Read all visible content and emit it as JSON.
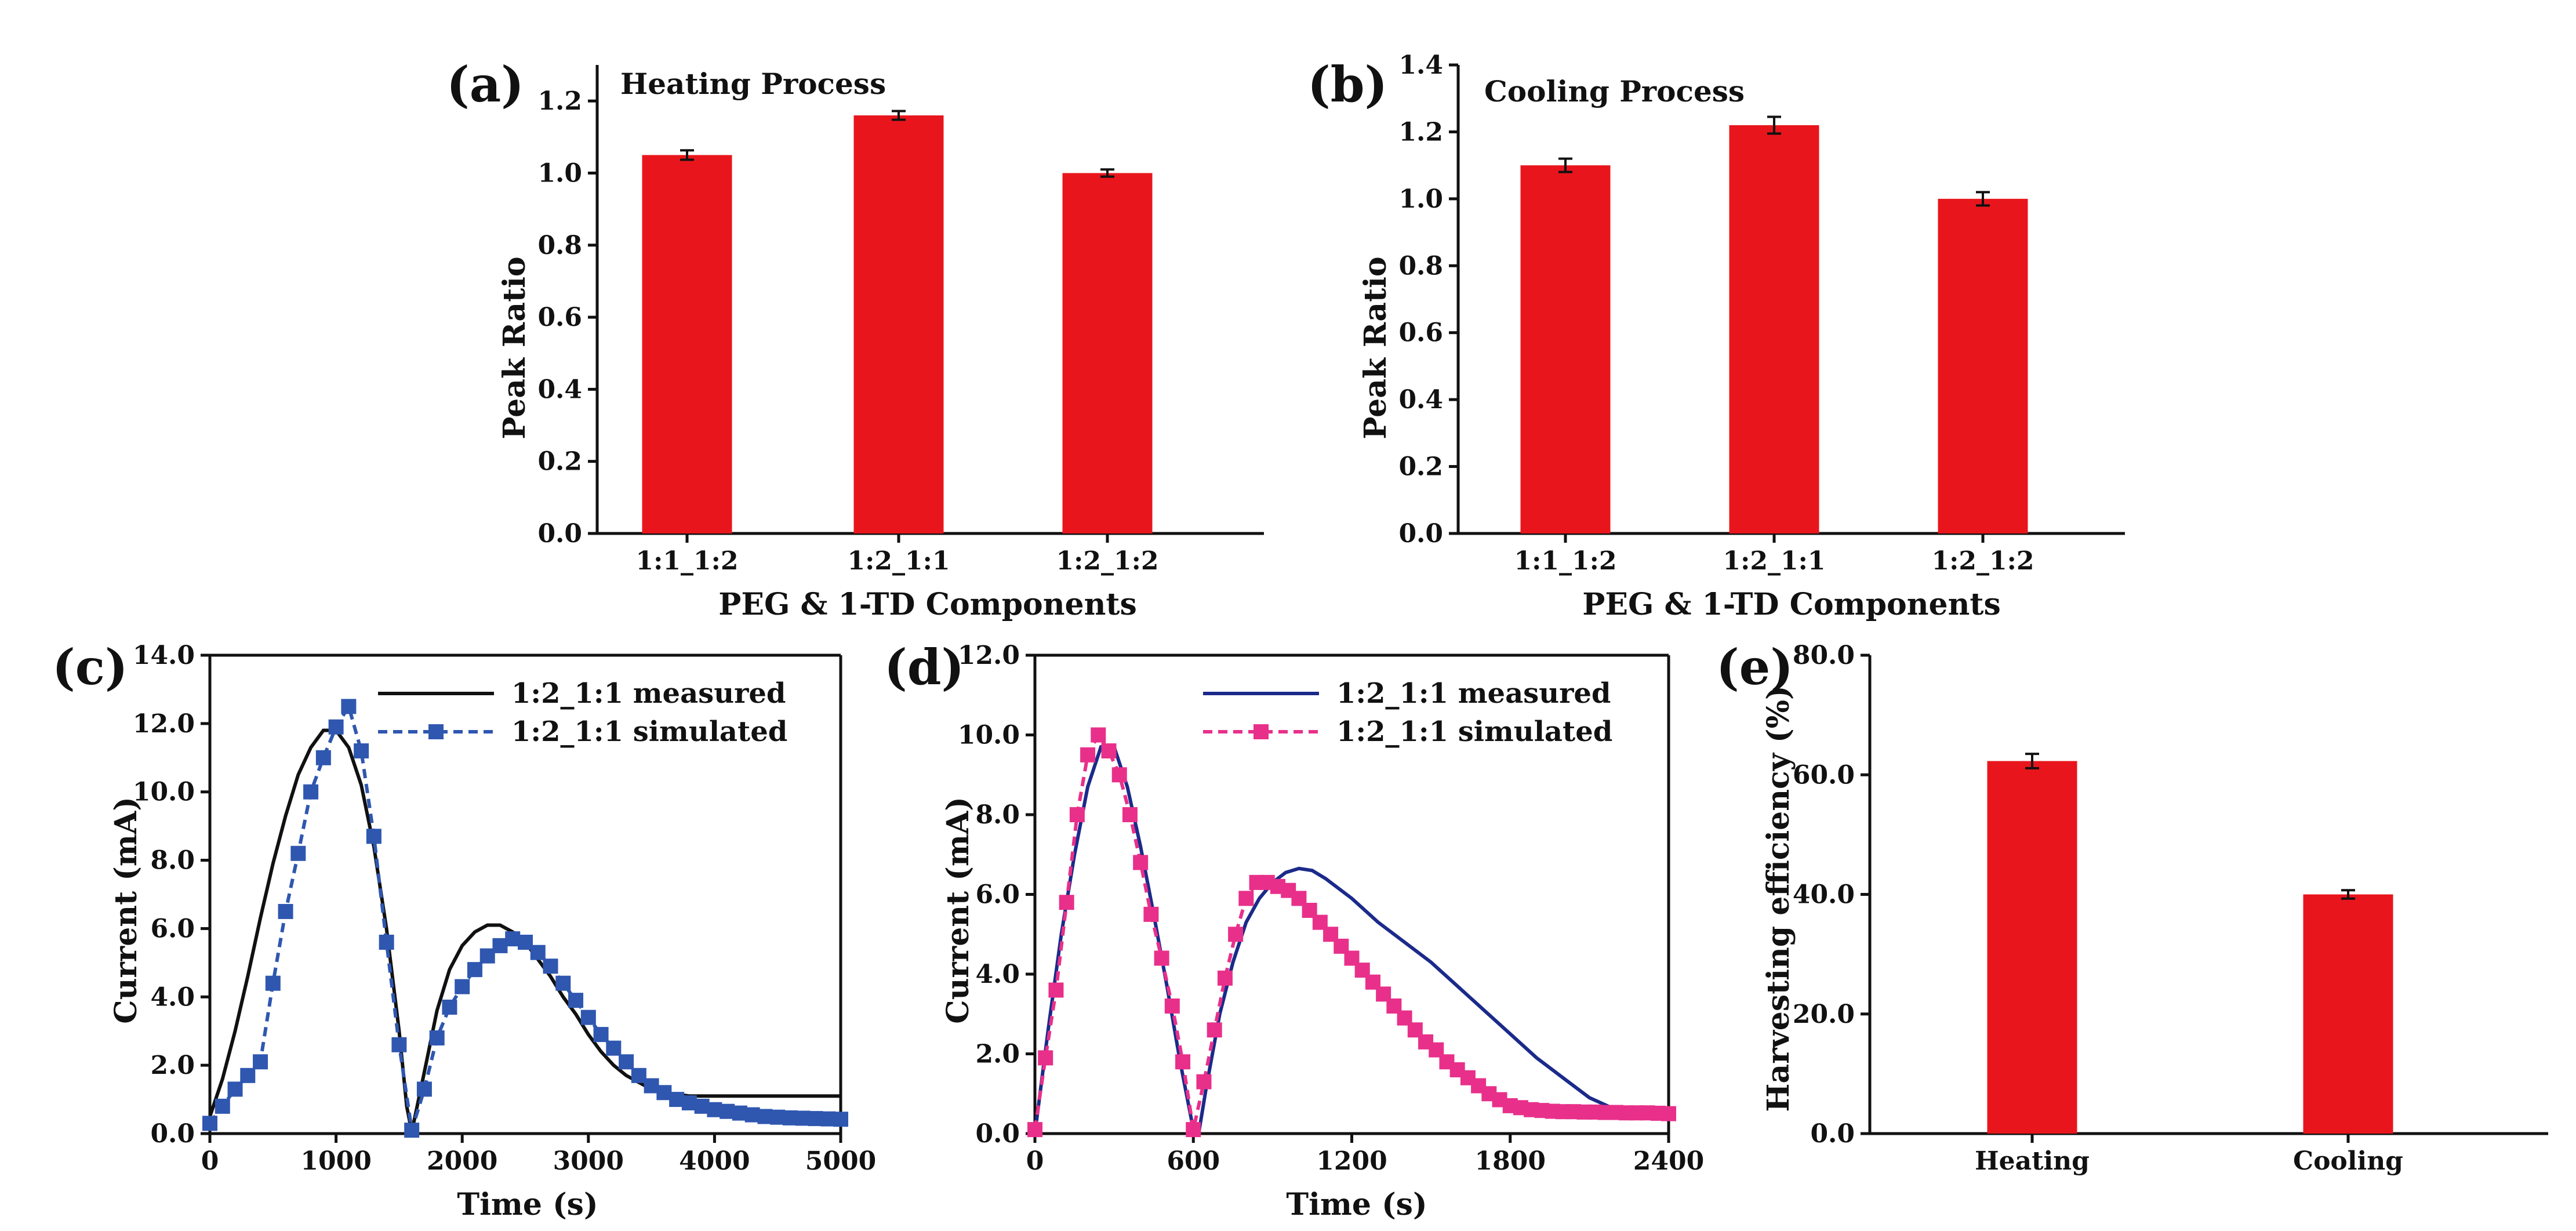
{
  "colors": {
    "bar": "#e8161c",
    "measured_black": "#111111",
    "simulated_blue": "#2f57b0",
    "measured_navy": "#1b2a8a",
    "simulated_pink": "#e8308a",
    "axis": "#111111"
  },
  "chart_data": [
    {
      "panel": "(a)",
      "type": "bar",
      "title": "Heating Process",
      "xlabel": "PEG & 1-TD Components",
      "ylabel": "Peak Ratio",
      "categories": [
        "1:1_1:2",
        "1:2_1:1",
        "1:2_1:2"
      ],
      "values": [
        1.05,
        1.16,
        1.0
      ],
      "errors": [
        0.013,
        0.012,
        0.01
      ],
      "ylim": [
        0,
        1.3
      ],
      "yticks": [
        0.0,
        0.2,
        0.4,
        0.6,
        0.8,
        1.0,
        1.2
      ],
      "ytick_labels": [
        "0.0",
        "0.2",
        "0.4",
        "0.6",
        "0.8",
        "1.0",
        "1.2"
      ]
    },
    {
      "panel": "(b)",
      "type": "bar",
      "title": "Cooling Process",
      "xlabel": "PEG & 1-TD Components",
      "ylabel": "Peak Ratio",
      "categories": [
        "1:1_1:2",
        "1:2_1:1",
        "1:2_1:2"
      ],
      "values": [
        1.1,
        1.22,
        1.0
      ],
      "errors": [
        0.02,
        0.025,
        0.02
      ],
      "ylim": [
        0,
        1.4
      ],
      "yticks": [
        0.0,
        0.2,
        0.4,
        0.6,
        0.8,
        1.0,
        1.2,
        1.4
      ],
      "ytick_labels": [
        "0.0",
        "0.2",
        "0.4",
        "0.6",
        "0.8",
        "1.0",
        "1.2",
        "1.4"
      ]
    },
    {
      "panel": "(c)",
      "type": "line",
      "xlabel": "Time (s)",
      "ylabel": "Current (mA)",
      "xlim": [
        0,
        5000
      ],
      "ylim": [
        0,
        14
      ],
      "xticks": [
        0,
        1000,
        2000,
        3000,
        4000,
        5000
      ],
      "xtick_labels": [
        "0",
        "1000",
        "2000",
        "3000",
        "4000",
        "5000"
      ],
      "yticks": [
        0,
        2,
        4,
        6,
        8,
        10,
        12,
        14
      ],
      "ytick_labels": [
        "0.0",
        "2.0",
        "4.0",
        "6.0",
        "8.0",
        "10.0",
        "12.0",
        "14.0"
      ],
      "series": [
        {
          "name": "1:2_1:1 measured",
          "style": "line",
          "x": [
            0,
            100,
            200,
            300,
            400,
            500,
            600,
            700,
            800,
            900,
            1000,
            1100,
            1200,
            1300,
            1400,
            1500,
            1560,
            1600,
            1700,
            1800,
            1900,
            2000,
            2100,
            2200,
            2300,
            2400,
            2500,
            2600,
            2700,
            2800,
            2900,
            3000,
            3100,
            3200,
            3300,
            3400,
            3500,
            3600,
            3700,
            3800,
            3900,
            4000,
            4200,
            4400,
            4600,
            4800,
            5000
          ],
          "y": [
            0.5,
            1.6,
            3.0,
            4.6,
            6.3,
            7.9,
            9.3,
            10.5,
            11.3,
            11.8,
            11.8,
            11.3,
            10.2,
            8.4,
            6.0,
            3.0,
            0.8,
            0.05,
            1.8,
            3.6,
            4.8,
            5.5,
            5.9,
            6.1,
            6.1,
            5.9,
            5.6,
            5.1,
            4.6,
            4.0,
            3.5,
            2.9,
            2.4,
            2.0,
            1.7,
            1.5,
            1.3,
            1.2,
            1.15,
            1.1,
            1.1,
            1.1,
            1.1,
            1.1,
            1.1,
            1.1,
            1.1
          ]
        },
        {
          "name": "1:2_1:1 simulated",
          "style": "line-square",
          "x": [
            0,
            100,
            200,
            300,
            400,
            500,
            600,
            700,
            800,
            900,
            1000,
            1100,
            1200,
            1300,
            1400,
            1500,
            1600,
            1700,
            1800,
            1900,
            2000,
            2100,
            2200,
            2300,
            2400,
            2500,
            2600,
            2700,
            2800,
            2900,
            3000,
            3100,
            3200,
            3300,
            3400,
            3500,
            3600,
            3700,
            3800,
            3900,
            4000,
            4100,
            4200,
            4300,
            4400,
            4500,
            4600,
            4700,
            4800,
            4900,
            5000
          ],
          "y": [
            0.3,
            0.8,
            1.3,
            1.7,
            2.1,
            4.4,
            6.5,
            8.2,
            10.0,
            11.0,
            11.9,
            12.5,
            11.2,
            8.7,
            5.6,
            2.6,
            0.1,
            1.3,
            2.8,
            3.7,
            4.3,
            4.8,
            5.2,
            5.5,
            5.7,
            5.6,
            5.3,
            4.9,
            4.4,
            3.9,
            3.4,
            2.9,
            2.5,
            2.1,
            1.7,
            1.4,
            1.2,
            1.0,
            0.9,
            0.8,
            0.7,
            0.65,
            0.6,
            0.55,
            0.5,
            0.48,
            0.46,
            0.45,
            0.44,
            0.43,
            0.42
          ]
        }
      ]
    },
    {
      "panel": "(d)",
      "type": "line",
      "xlabel": "Time (s)",
      "ylabel": "Current (mA)",
      "xlim": [
        0,
        2400
      ],
      "ylim": [
        0,
        12
      ],
      "xticks": [
        0,
        600,
        1200,
        1800,
        2400
      ],
      "xtick_labels": [
        "0",
        "600",
        "1200",
        "1800",
        "2400"
      ],
      "yticks": [
        0,
        2,
        4,
        6,
        8,
        10,
        12
      ],
      "ytick_labels": [
        "0.0",
        "2.0",
        "4.0",
        "6.0",
        "8.0",
        "10.0",
        "12.0"
      ],
      "series": [
        {
          "name": "1:2_1:1 measured",
          "style": "line",
          "x": [
            0,
            50,
            100,
            150,
            200,
            250,
            300,
            350,
            400,
            450,
            500,
            550,
            600,
            620,
            650,
            700,
            750,
            800,
            850,
            900,
            950,
            1000,
            1050,
            1100,
            1200,
            1300,
            1400,
            1500,
            1600,
            1700,
            1800,
            1900,
            2000,
            2100,
            2200,
            2300,
            2400
          ],
          "y": [
            0,
            2.6,
            5.0,
            7.0,
            8.7,
            9.7,
            9.7,
            8.7,
            7.2,
            5.5,
            3.7,
            1.8,
            0.1,
            0.0,
            1.2,
            3.0,
            4.3,
            5.3,
            5.9,
            6.3,
            6.55,
            6.65,
            6.6,
            6.4,
            5.9,
            5.3,
            4.8,
            4.3,
            3.7,
            3.1,
            2.5,
            1.9,
            1.4,
            0.9,
            0.6,
            0.5,
            0.5
          ]
        },
        {
          "name": "1:2_1:1 simulated",
          "style": "line-square",
          "x": [
            0,
            40,
            80,
            120,
            160,
            200,
            240,
            280,
            320,
            360,
            400,
            440,
            480,
            520,
            560,
            600,
            640,
            680,
            720,
            760,
            800,
            840,
            880,
            920,
            960,
            1000,
            1040,
            1080,
            1120,
            1160,
            1200,
            1240,
            1280,
            1320,
            1360,
            1400,
            1440,
            1480,
            1520,
            1560,
            1600,
            1640,
            1680,
            1720,
            1760,
            1800,
            1840,
            1880,
            1920,
            1960,
            2000,
            2040,
            2080,
            2120,
            2160,
            2200,
            2240,
            2280,
            2320,
            2360,
            2400
          ],
          "y": [
            0.1,
            1.9,
            3.6,
            5.8,
            8.0,
            9.5,
            10.0,
            9.6,
            9.0,
            8.0,
            6.8,
            5.5,
            4.4,
            3.2,
            1.8,
            0.1,
            1.3,
            2.6,
            3.9,
            5.0,
            5.9,
            6.3,
            6.3,
            6.2,
            6.1,
            5.9,
            5.6,
            5.3,
            5.0,
            4.7,
            4.4,
            4.1,
            3.8,
            3.5,
            3.2,
            2.9,
            2.6,
            2.3,
            2.1,
            1.8,
            1.6,
            1.4,
            1.2,
            1.0,
            0.85,
            0.7,
            0.65,
            0.6,
            0.58,
            0.56,
            0.55,
            0.55,
            0.54,
            0.54,
            0.53,
            0.53,
            0.52,
            0.52,
            0.52,
            0.51,
            0.5
          ]
        }
      ]
    },
    {
      "panel": "(e)",
      "type": "bar",
      "title": "",
      "xlabel": "",
      "ylabel": "Harvesting efficiency (%)",
      "categories": [
        "Heating",
        "Cooling"
      ],
      "values": [
        62.3,
        40.0
      ],
      "errors": [
        1.2,
        0.7
      ],
      "ylim": [
        0,
        80
      ],
      "yticks": [
        0,
        20,
        40,
        60,
        80
      ],
      "ytick_labels": [
        "0.0",
        "20.0",
        "40.0",
        "60.0",
        "80.0"
      ]
    }
  ]
}
